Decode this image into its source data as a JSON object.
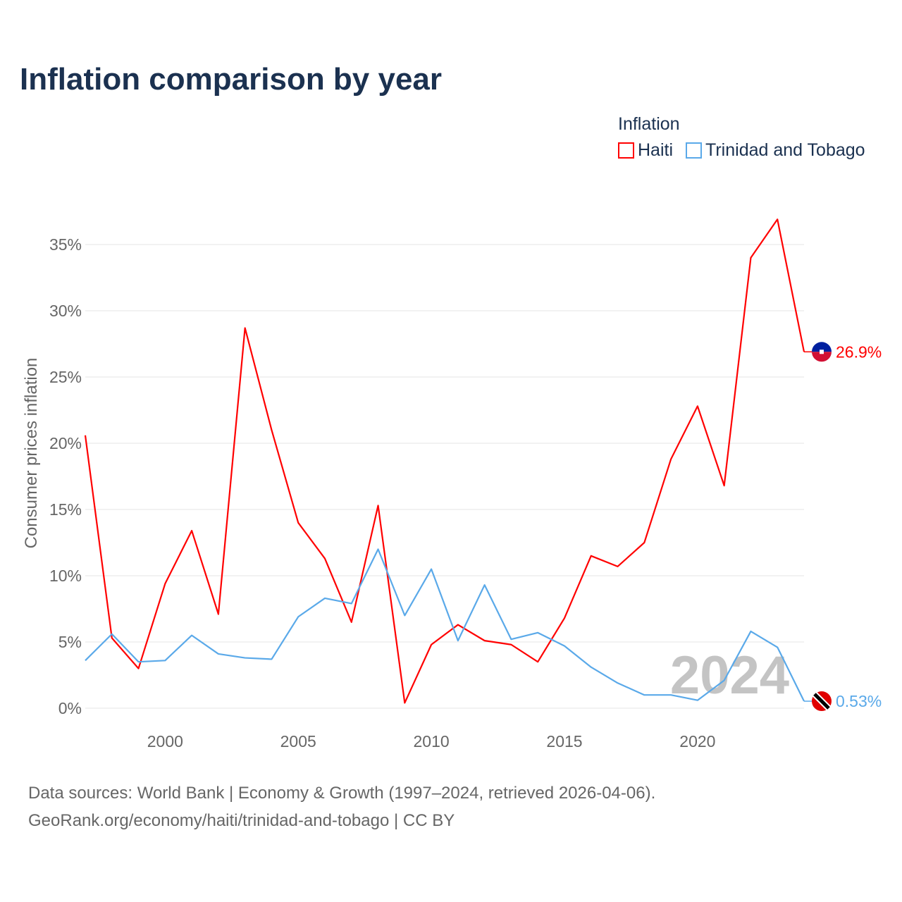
{
  "title": "Inflation comparison by year",
  "legend": {
    "title": "Inflation",
    "items": [
      {
        "name": "Haiti",
        "color": "#ff0000"
      },
      {
        "name": "Trinidad and Tobago",
        "color": "#5aa9e9"
      }
    ]
  },
  "chart_data": {
    "type": "line",
    "title": "Inflation comparison by year",
    "xlabel": "",
    "ylabel": "Consumer prices inflation",
    "ylim": [
      0,
      37
    ],
    "xlim": [
      1997,
      2024
    ],
    "yticks": [
      0,
      5,
      10,
      15,
      20,
      25,
      30,
      35
    ],
    "ytick_labels": [
      "0%",
      "5%",
      "10%",
      "15%",
      "20%",
      "25%",
      "30%",
      "35%"
    ],
    "xticks": [
      2000,
      2005,
      2010,
      2015,
      2020
    ],
    "xtick_labels": [
      "2000",
      "2005",
      "2010",
      "2015",
      "2020"
    ],
    "grid": true,
    "legend_placement": "top-right",
    "x": [
      1997,
      1998,
      1999,
      2000,
      2001,
      2002,
      2003,
      2004,
      2005,
      2006,
      2007,
      2008,
      2009,
      2010,
      2011,
      2012,
      2013,
      2014,
      2015,
      2016,
      2017,
      2018,
      2019,
      2020,
      2021,
      2022,
      2023,
      2024
    ],
    "series": [
      {
        "name": "Haiti",
        "color": "#ff0000",
        "end_label": "26.9%",
        "flag": "haiti-flag",
        "values": [
          20.6,
          5.3,
          3.0,
          9.4,
          13.4,
          7.1,
          28.7,
          21.0,
          14.0,
          11.3,
          6.5,
          15.3,
          0.4,
          4.8,
          6.3,
          5.1,
          4.8,
          3.5,
          6.8,
          11.5,
          10.7,
          12.5,
          18.8,
          22.8,
          16.8,
          34.0,
          36.9,
          26.9
        ]
      },
      {
        "name": "Trinidad and Tobago",
        "color": "#5aa9e9",
        "end_label": "0.53%",
        "flag": "trinidad-and-tobago-flag",
        "values": [
          3.6,
          5.6,
          3.5,
          3.6,
          5.5,
          4.1,
          3.8,
          3.7,
          6.9,
          8.3,
          7.9,
          12.0,
          7.0,
          10.5,
          5.1,
          9.3,
          5.2,
          5.7,
          4.7,
          3.1,
          1.9,
          1.0,
          1.0,
          0.6,
          2.1,
          5.8,
          4.6,
          0.53
        ]
      }
    ],
    "annotation": "2024"
  },
  "source": {
    "line1": "Data sources: World Bank | Economy & Growth (1997–2024, retrieved 2026-04-06).",
    "line2": "GeoRank.org/economy/haiti/trinidad-and-tobago | CC BY"
  }
}
